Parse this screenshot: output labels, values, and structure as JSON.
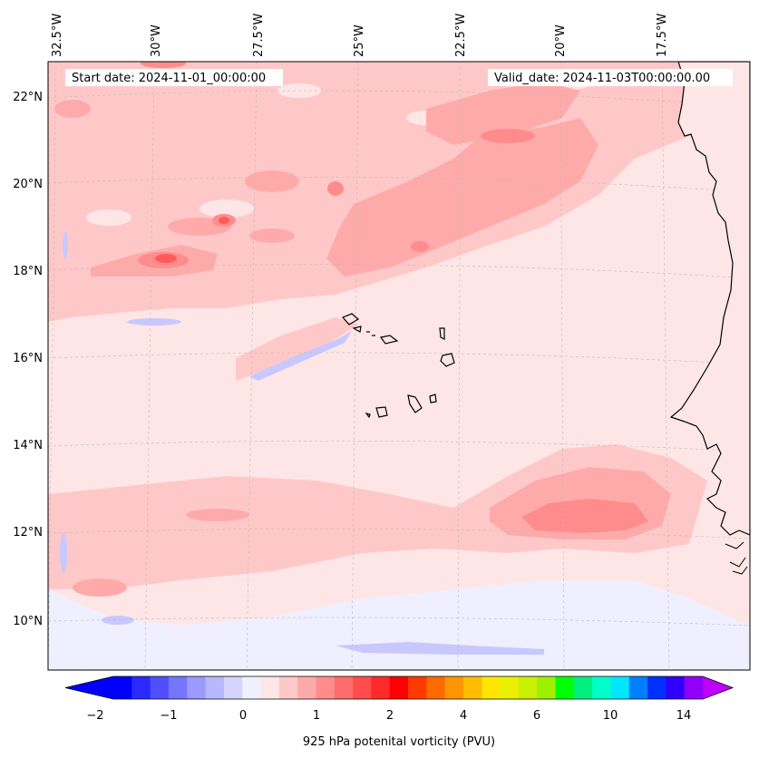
{
  "header": {
    "start_date": "Start date: 2024-11-01_00:00:00",
    "valid_date": "Valid_date: 2024-11-03T00:00:00.00"
  },
  "longitude_labels": [
    "32.5°W",
    "30°W",
    "27.5°W",
    "25°W",
    "22.5°W",
    "20°W",
    "17.5°W"
  ],
  "latitude_labels": [
    "22°N",
    "20°N",
    "18°N",
    "16°N",
    "14°N",
    "12°N",
    "10°N"
  ],
  "colorbar": {
    "label": "925 hPa potenital vorticity (PVU)",
    "ticks": [
      "−2",
      "−1",
      "0",
      "1",
      "2",
      "4",
      "6",
      "10",
      "14"
    ],
    "colors": [
      "#0000ff",
      "#2a2aff",
      "#4f4fff",
      "#7575ff",
      "#9a9aff",
      "#b7b7ff",
      "#d4d4ff",
      "#efefff",
      "#ffe6e6",
      "#ffc8c8",
      "#ffaaaa",
      "#ff8c8c",
      "#ff6c6c",
      "#ff4c4c",
      "#ff2a2a",
      "#ff0000",
      "#ff3a00",
      "#ff6a00",
      "#ff9500",
      "#ffbc00",
      "#ffe600",
      "#eaf000",
      "#c8f000",
      "#9cf000",
      "#00ff00",
      "#00f080",
      "#00ffc8",
      "#00e6ff",
      "#0080ff",
      "#0030ff",
      "#3000ff",
      "#9000ff"
    ],
    "min_color": "#0000ff",
    "max_color": "#c000ff"
  },
  "colors": {
    "background": "#ffe6e6",
    "light_pink": "#ffc8c8",
    "pink": "#ffaaaa",
    "dark_pink": "#ff8c8c",
    "red": "#ff5a5a",
    "light_blue": "#efefff",
    "blue": "#c8c8ff"
  }
}
